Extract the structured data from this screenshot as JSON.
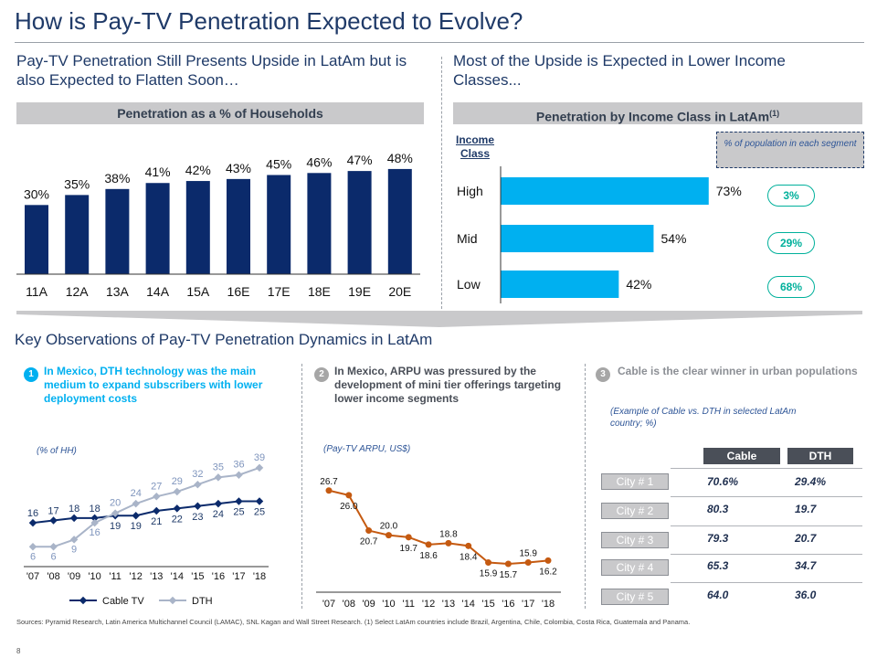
{
  "title": "How is Pay-TV Penetration Expected to Evolve?",
  "left_subhead": "Pay-TV Penetration Still Presents Upside in LatAm but is also Expected to Flatten Soon…",
  "right_subhead": "Most of the Upside is Expected in Lower Income Classes...",
  "left_panel_title": "Penetration as a % of Households",
  "right_panel_title": "Penetration by Income Class in LatAm",
  "right_panel_sup": "(1)",
  "income_class_label": "Income Class",
  "pop_box_label": "% of population in each segment",
  "population_shares": [
    "3%",
    "29%",
    "68%"
  ],
  "observations_title": "Key Observations of Pay-TV Penetration Dynamics in LatAm",
  "obs1": {
    "num": "1",
    "text": "In Mexico, DTH technology was the main medium to expand subscribers with lower deployment costs",
    "note": "(% of HH)"
  },
  "obs2": {
    "num": "2",
    "text": "In Mexico, ARPU was pressured by the development of mini tier offerings targeting lower income segments",
    "note": "(Pay-TV ARPU, US$)"
  },
  "obs3": {
    "num": "3",
    "text": "Cable is the clear winner in urban populations",
    "note": "(Example of Cable vs. DTH in selected LatAm country; %)"
  },
  "table": {
    "col_cable": "Cable",
    "col_dth": "DTH",
    "rows": [
      {
        "city": "City # 1",
        "cable": "70.6%",
        "dth": "29.4%"
      },
      {
        "city": "City # 2",
        "cable": "80.3",
        "dth": "19.7"
      },
      {
        "city": "City # 3",
        "cable": "79.3",
        "dth": "20.7"
      },
      {
        "city": "City # 4",
        "cable": "65.3",
        "dth": "34.7"
      },
      {
        "city": "City # 5",
        "cable": "64.0",
        "dth": "36.0"
      }
    ]
  },
  "footnote": "Sources: Pyramid Research, Latin America Multichannel Council (LAMAC), SNL Kagan and Wall Street Research. (1) Select LatAm countries include Brazil, Argentina, Chile, Colombia, Costa Rica, Guatemala and Panama.",
  "page_number": "8",
  "colors": {
    "navy": "#1f3a68",
    "bar_blue": "#0b2a6b",
    "cyan": "#00b0f0",
    "orange": "#c55a11",
    "dth_grey": "#a9b4c8",
    "teal": "#00b09b"
  },
  "chart_data": [
    {
      "type": "bar",
      "title": "Penetration as a % of Households",
      "categories": [
        "11A",
        "12A",
        "13A",
        "14A",
        "15A",
        "16E",
        "17E",
        "18E",
        "19E",
        "20E"
      ],
      "values": [
        30,
        35,
        38,
        41,
        42,
        43,
        45,
        46,
        47,
        48
      ],
      "labels": [
        "30%",
        "35%",
        "38%",
        "41%",
        "42%",
        "43%",
        "45%",
        "46%",
        "47%",
        "48%"
      ],
      "ylim": [
        0,
        55
      ]
    },
    {
      "type": "bar",
      "orientation": "horizontal",
      "title": "Penetration by Income Class in LatAm",
      "categories": [
        "High",
        "Mid",
        "Low"
      ],
      "values": [
        73,
        54,
        42
      ],
      "labels": [
        "73%",
        "54%",
        "42%"
      ],
      "xlim": [
        0,
        80
      ]
    },
    {
      "type": "line",
      "title": "(% of HH)",
      "categories": [
        "'07",
        "'08",
        "'09",
        "'10",
        "'11",
        "'12",
        "'13",
        "'14",
        "'15",
        "'16",
        "'17",
        "'18"
      ],
      "series": [
        {
          "name": "Cable TV",
          "values": [
            16,
            17,
            18,
            18,
            19,
            19,
            21,
            22,
            23,
            24,
            25,
            25
          ]
        },
        {
          "name": "DTH",
          "values": [
            6,
            6,
            9,
            16,
            20,
            24,
            27,
            29,
            32,
            35,
            36,
            39
          ]
        }
      ],
      "ylim": [
        0,
        42
      ],
      "legend": "bottom"
    },
    {
      "type": "line",
      "title": "(Pay-TV ARPU, US$)",
      "categories": [
        "'07",
        "'08",
        "'09",
        "'10",
        "'11",
        "'12",
        "'13",
        "'14",
        "'15",
        "'16",
        "'17",
        "'18"
      ],
      "series": [
        {
          "name": "Pay-TV ARPU",
          "values": [
            26.7,
            26.0,
            20.7,
            20.0,
            19.7,
            18.6,
            18.8,
            18.4,
            15.9,
            15.7,
            15.9,
            16.2
          ]
        }
      ],
      "labels": [
        "26.7",
        "26.0",
        "20.7",
        "20.0",
        "19.7",
        "18.6",
        "18.8",
        "18.4",
        "15.9",
        "15.7",
        "15.9",
        "16.2"
      ],
      "ylim": [
        12,
        29
      ]
    }
  ]
}
